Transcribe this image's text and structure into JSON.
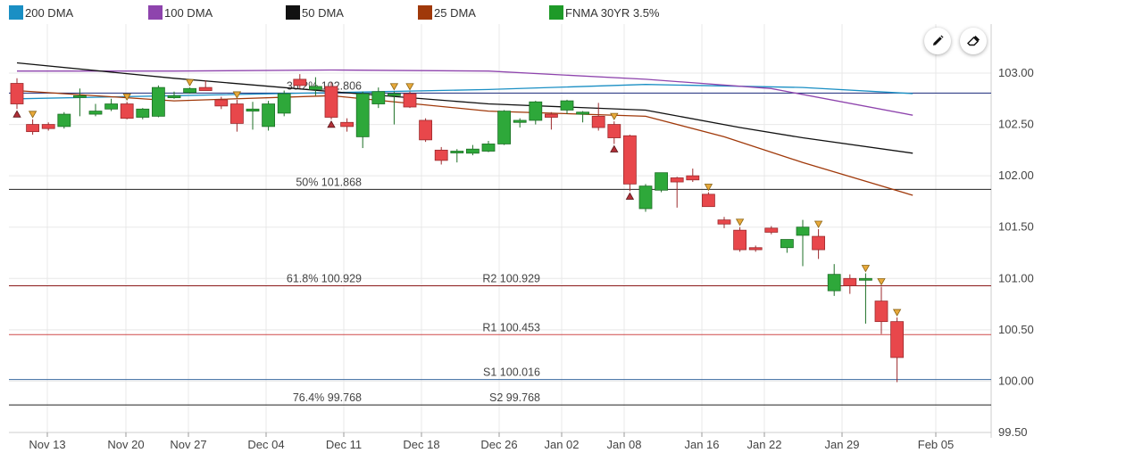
{
  "legend": [
    {
      "label": "200 DMA",
      "color": "#1a8fc4"
    },
    {
      "label": "100 DMA",
      "color": "#8e44ad"
    },
    {
      "label": "50 DMA",
      "color": "#111111"
    },
    {
      "label": "25 DMA",
      "color": "#a0390a"
    },
    {
      "label": "FNMA 30YR 3.5%",
      "color": "#1e9a28"
    }
  ],
  "toolbar": {
    "draw_icon": "pencil-icon",
    "erase_icon": "eraser-icon"
  },
  "chart_data": {
    "type": "candlestick",
    "title": "",
    "xlabel": "",
    "ylabel": "",
    "ylim": [
      99.5,
      103.25
    ],
    "y_ticks": [
      "103.00",
      "102.50",
      "102.00",
      "101.50",
      "101.00",
      "100.50",
      "100.00",
      "99.50"
    ],
    "x_ticks": [
      "Nov 13",
      "Nov 20",
      "Nov 27",
      "Dec 04",
      "Dec 11",
      "Dec 18",
      "Dec 26",
      "Jan 02",
      "Jan 08",
      "Jan 16",
      "Jan 22",
      "Jan 29",
      "Feb 05"
    ],
    "grid": true,
    "legend_position": "top",
    "candles": [
      {
        "date": "Nov 10",
        "open": 102.9,
        "high": 102.95,
        "low": 102.65,
        "close": 102.7
      },
      {
        "date": "Nov 13",
        "open": 102.5,
        "high": 102.55,
        "low": 102.4,
        "close": 102.43
      },
      {
        "date": "Nov 14",
        "open": 102.5,
        "high": 102.52,
        "low": 102.44,
        "close": 102.46
      },
      {
        "date": "Nov 15",
        "open": 102.48,
        "high": 102.62,
        "low": 102.46,
        "close": 102.6
      },
      {
        "date": "Nov 16",
        "open": 102.77,
        "high": 102.85,
        "low": 102.58,
        "close": 102.78
      },
      {
        "date": "Nov 17",
        "open": 102.6,
        "high": 102.7,
        "low": 102.58,
        "close": 102.63
      },
      {
        "date": "Nov 20",
        "open": 102.65,
        "high": 102.75,
        "low": 102.63,
        "close": 102.7
      },
      {
        "date": "Nov 21",
        "open": 102.7,
        "high": 102.72,
        "low": 102.55,
        "close": 102.56
      },
      {
        "date": "Nov 22",
        "open": 102.57,
        "high": 102.66,
        "low": 102.55,
        "close": 102.65
      },
      {
        "date": "Nov 24",
        "open": 102.58,
        "high": 102.88,
        "low": 102.57,
        "close": 102.86
      },
      {
        "date": "Nov 27",
        "open": 102.76,
        "high": 102.82,
        "low": 102.75,
        "close": 102.78
      },
      {
        "date": "Nov 28",
        "open": 102.81,
        "high": 102.86,
        "low": 102.8,
        "close": 102.85
      },
      {
        "date": "Nov 29",
        "open": 102.86,
        "high": 102.93,
        "low": 102.84,
        "close": 102.83
      },
      {
        "date": "Nov 30",
        "open": 102.74,
        "high": 102.77,
        "low": 102.65,
        "close": 102.68
      },
      {
        "date": "Dec 01",
        "open": 102.7,
        "high": 102.74,
        "low": 102.43,
        "close": 102.51
      },
      {
        "date": "Dec 04",
        "open": 102.63,
        "high": 102.72,
        "low": 102.45,
        "close": 102.65
      },
      {
        "date": "Dec 05",
        "open": 102.48,
        "high": 102.73,
        "low": 102.44,
        "close": 102.7
      },
      {
        "date": "Dec 06",
        "open": 102.61,
        "high": 102.83,
        "low": 102.58,
        "close": 102.8
      },
      {
        "date": "Dec 07",
        "open": 102.94,
        "high": 102.99,
        "low": 102.85,
        "close": 102.88
      },
      {
        "date": "Dec 08",
        "open": 102.84,
        "high": 102.96,
        "low": 102.78,
        "close": 102.87
      },
      {
        "date": "Dec 11",
        "open": 102.87,
        "high": 102.91,
        "low": 102.55,
        "close": 102.57
      },
      {
        "date": "Dec 12",
        "open": 102.52,
        "high": 102.56,
        "low": 102.43,
        "close": 102.48
      },
      {
        "date": "Dec 13",
        "open": 102.38,
        "high": 102.82,
        "low": 102.27,
        "close": 102.8
      },
      {
        "date": "Dec 14",
        "open": 102.7,
        "high": 102.86,
        "low": 102.66,
        "close": 102.82
      },
      {
        "date": "Dec 15",
        "open": 102.78,
        "high": 102.82,
        "low": 102.5,
        "close": 102.8
      },
      {
        "date": "Dec 18",
        "open": 102.8,
        "high": 102.82,
        "low": 102.66,
        "close": 102.67
      },
      {
        "date": "Dec 19",
        "open": 102.54,
        "high": 102.56,
        "low": 102.33,
        "close": 102.35
      },
      {
        "date": "Dec 20",
        "open": 102.25,
        "high": 102.28,
        "low": 102.11,
        "close": 102.15
      },
      {
        "date": "Dec 21",
        "open": 102.24,
        "high": 102.26,
        "low": 102.13,
        "close": 102.24
      },
      {
        "date": "Dec 22",
        "open": 102.22,
        "high": 102.3,
        "low": 102.2,
        "close": 102.26
      },
      {
        "date": "Dec 26",
        "open": 102.24,
        "high": 102.34,
        "low": 102.23,
        "close": 102.31
      },
      {
        "date": "Dec 27",
        "open": 102.31,
        "high": 102.64,
        "low": 102.3,
        "close": 102.63
      },
      {
        "date": "Dec 28",
        "open": 102.52,
        "high": 102.56,
        "low": 102.47,
        "close": 102.54
      },
      {
        "date": "Dec 29",
        "open": 102.54,
        "high": 102.73,
        "low": 102.5,
        "close": 102.72
      },
      {
        "date": "Jan 02",
        "open": 102.6,
        "high": 102.62,
        "low": 102.45,
        "close": 102.57
      },
      {
        "date": "Jan 03",
        "open": 102.64,
        "high": 102.74,
        "low": 102.6,
        "close": 102.73
      },
      {
        "date": "Jan 04",
        "open": 102.6,
        "high": 102.63,
        "low": 102.52,
        "close": 102.62
      },
      {
        "date": "Jan 05",
        "open": 102.58,
        "high": 102.71,
        "low": 102.44,
        "close": 102.47
      },
      {
        "date": "Jan 08",
        "open": 102.5,
        "high": 102.53,
        "low": 102.31,
        "close": 102.37
      },
      {
        "date": "Jan 09",
        "open": 102.39,
        "high": 102.4,
        "low": 101.85,
        "close": 101.92
      },
      {
        "date": "Jan 10",
        "open": 101.68,
        "high": 101.92,
        "low": 101.65,
        "close": 101.9
      },
      {
        "date": "Jan 11",
        "open": 101.86,
        "high": 102.03,
        "low": 101.84,
        "close": 102.03
      },
      {
        "date": "Jan 12",
        "open": 101.98,
        "high": 101.99,
        "low": 101.69,
        "close": 101.94
      },
      {
        "date": "Jan 16",
        "open": 102.0,
        "high": 102.07,
        "low": 101.94,
        "close": 101.96
      },
      {
        "date": "Jan 17",
        "open": 101.82,
        "high": 101.84,
        "low": 101.7,
        "close": 101.7
      },
      {
        "date": "Jan 18",
        "open": 101.57,
        "high": 101.6,
        "low": 101.49,
        "close": 101.53
      },
      {
        "date": "Jan 19",
        "open": 101.47,
        "high": 101.5,
        "low": 101.26,
        "close": 101.28
      },
      {
        "date": "Jan 22",
        "open": 101.3,
        "high": 101.32,
        "low": 101.26,
        "close": 101.28
      },
      {
        "date": "Jan 23",
        "open": 101.49,
        "high": 101.51,
        "low": 101.43,
        "close": 101.45
      },
      {
        "date": "Jan 24",
        "open": 101.3,
        "high": 101.38,
        "low": 101.25,
        "close": 101.38
      },
      {
        "date": "Jan 25",
        "open": 101.42,
        "high": 101.57,
        "low": 101.12,
        "close": 101.5
      },
      {
        "date": "Jan 26",
        "open": 101.41,
        "high": 101.48,
        "low": 101.19,
        "close": 101.28
      },
      {
        "date": "Jan 29",
        "open": 100.88,
        "high": 101.14,
        "low": 100.83,
        "close": 101.04
      },
      {
        "date": "Jan 30",
        "open": 101.0,
        "high": 101.04,
        "low": 100.85,
        "close": 100.93
      },
      {
        "date": "Jan 31",
        "open": 101.0,
        "high": 101.05,
        "low": 100.56,
        "close": 101.0
      },
      {
        "date": "Feb 01",
        "open": 100.78,
        "high": 100.92,
        "low": 100.46,
        "close": 100.58
      },
      {
        "date": "Feb 02",
        "open": 100.58,
        "high": 100.62,
        "low": 99.99,
        "close": 100.23
      }
    ],
    "moving_averages": [
      {
        "name": "200 DMA",
        "color": "#1a8fc4",
        "points": [
          [
            0,
            102.75
          ],
          [
            10,
            102.78
          ],
          [
            20,
            102.81
          ],
          [
            30,
            102.84
          ],
          [
            40,
            102.89
          ],
          [
            50,
            102.86
          ],
          [
            57,
            102.8
          ]
        ]
      },
      {
        "name": "100 DMA",
        "color": "#8e44ad",
        "points": [
          [
            0,
            103.02
          ],
          [
            10,
            103.02
          ],
          [
            20,
            103.03
          ],
          [
            30,
            103.02
          ],
          [
            40,
            102.94
          ],
          [
            48,
            102.85
          ],
          [
            57,
            102.59
          ]
        ]
      },
      {
        "name": "50 DMA",
        "color": "#111111",
        "points": [
          [
            0,
            103.1
          ],
          [
            10,
            102.95
          ],
          [
            20,
            102.82
          ],
          [
            30,
            102.7
          ],
          [
            40,
            102.64
          ],
          [
            46,
            102.47
          ],
          [
            50,
            102.37
          ],
          [
            57,
            102.22
          ]
        ]
      },
      {
        "name": "25 DMA",
        "color": "#a0390a",
        "points": [
          [
            0,
            102.83
          ],
          [
            10,
            102.73
          ],
          [
            20,
            102.78
          ],
          [
            30,
            102.63
          ],
          [
            40,
            102.58
          ],
          [
            45,
            102.38
          ],
          [
            50,
            102.13
          ],
          [
            57,
            101.81
          ]
        ]
      }
    ],
    "horizontal_lines": [
      {
        "value": 102.806,
        "color": "#1a2a7a",
        "labels": [
          {
            "text": "38.2% 102.806",
            "anchor": "fib"
          }
        ]
      },
      {
        "value": 101.868,
        "color": "#222222",
        "labels": [
          {
            "text": "50% 101.868",
            "anchor": "fib"
          }
        ]
      },
      {
        "value": 100.929,
        "color": "#8b1a1a",
        "labels": [
          {
            "text": "61.8% 100.929",
            "anchor": "fib"
          },
          {
            "text": "R2 100.929",
            "anchor": "pivot"
          }
        ]
      },
      {
        "value": 100.453,
        "color": "#d04a4a",
        "labels": [
          {
            "text": "R1 100.453",
            "anchor": "pivot"
          }
        ]
      },
      {
        "value": 100.016,
        "color": "#3a6aa0",
        "labels": [
          {
            "text": "S1 100.016",
            "anchor": "pivot"
          }
        ]
      },
      {
        "value": 99.768,
        "color": "#222222",
        "labels": [
          {
            "text": "76.4% 99.768",
            "anchor": "fib"
          },
          {
            "text": "S2 99.768",
            "anchor": "pivot"
          }
        ]
      }
    ],
    "markers": [
      {
        "index": 0,
        "type": "up"
      },
      {
        "index": 1,
        "type": "down"
      },
      {
        "index": 7,
        "type": "down"
      },
      {
        "index": 11,
        "type": "down"
      },
      {
        "index": 14,
        "type": "down"
      },
      {
        "index": 20,
        "type": "up"
      },
      {
        "index": 24,
        "type": "down"
      },
      {
        "index": 25,
        "type": "down"
      },
      {
        "index": 38,
        "type": "down"
      },
      {
        "index": 38,
        "type": "up"
      },
      {
        "index": 39,
        "type": "up"
      },
      {
        "index": 44,
        "type": "down"
      },
      {
        "index": 46,
        "type": "down"
      },
      {
        "index": 51,
        "type": "down"
      },
      {
        "index": 54,
        "type": "down"
      },
      {
        "index": 55,
        "type": "down"
      },
      {
        "index": 56,
        "type": "down"
      }
    ]
  }
}
